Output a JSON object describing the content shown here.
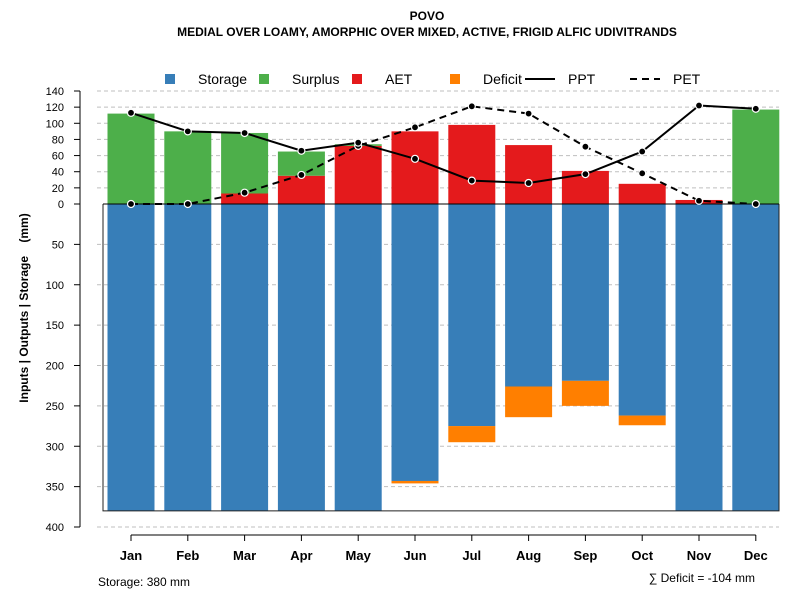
{
  "chart_data": {
    "type": "bar",
    "title": "POVO",
    "subtitle": "MEDIAL OVER LOAMY, AMORPHIC OVER MIXED, ACTIVE, FRIGID ALFIC UDIVITRANDS",
    "ylabel": "Inputs | Outputs | Storage    (mm)",
    "xlabel": "",
    "categories": [
      "Jan",
      "Feb",
      "Mar",
      "Apr",
      "May",
      "Jun",
      "Jul",
      "Aug",
      "Sep",
      "Oct",
      "Nov",
      "Dec"
    ],
    "upper_ticks": [
      "0",
      "20",
      "40",
      "60",
      "80",
      "100",
      "120",
      "140"
    ],
    "lower_ticks": [
      "50",
      "100",
      "150",
      "200",
      "250",
      "300",
      "350",
      "400"
    ],
    "upper_ylim": [
      0,
      140
    ],
    "lower_ylim": [
      0,
      400
    ],
    "legend": [
      {
        "label": "Storage",
        "type": "square",
        "color": "#377EB8"
      },
      {
        "label": "Surplus",
        "type": "square",
        "color": "#4DAF4A"
      },
      {
        "label": "AET",
        "type": "square",
        "color": "#E41A1C"
      },
      {
        "label": "Deficit",
        "type": "square",
        "color": "#FF7F00"
      },
      {
        "label": "PPT",
        "type": "solid",
        "color": "#000000"
      },
      {
        "label": "PET",
        "type": "dashed",
        "color": "#000000"
      }
    ],
    "series": [
      {
        "name": "Surplus",
        "values": [
          112,
          90,
          75,
          30,
          2,
          0,
          0,
          0,
          0,
          0,
          0,
          117
        ]
      },
      {
        "name": "AET",
        "values": [
          0,
          0,
          13,
          35,
          72,
          90,
          98,
          73,
          41,
          25,
          5,
          0
        ]
      },
      {
        "name": "Storage",
        "values": [
          380,
          380,
          380,
          380,
          380,
          343,
          275,
          226,
          219,
          262,
          380,
          380
        ]
      },
      {
        "name": "Deficit",
        "values": [
          0,
          0,
          0,
          0,
          0,
          3,
          20,
          38,
          31,
          12,
          0,
          0
        ]
      },
      {
        "name": "PPT",
        "values": [
          113,
          90,
          88,
          66,
          76,
          56,
          29,
          26,
          37,
          65,
          122,
          118
        ]
      },
      {
        "name": "PET",
        "values": [
          0,
          0,
          14,
          36,
          72,
          95,
          121,
          112,
          71,
          38,
          4,
          0
        ]
      }
    ],
    "storage_capacity": 380,
    "storage_note": "Storage: 380 mm",
    "deficit_note": "∑ Deficit = -104 mm",
    "colors": {
      "storage": "#377EB8",
      "surplus": "#4DAF4A",
      "aet": "#E41A1C",
      "deficit": "#FF7F00",
      "grid": "#bfbfbf",
      "line": "#000000"
    }
  }
}
